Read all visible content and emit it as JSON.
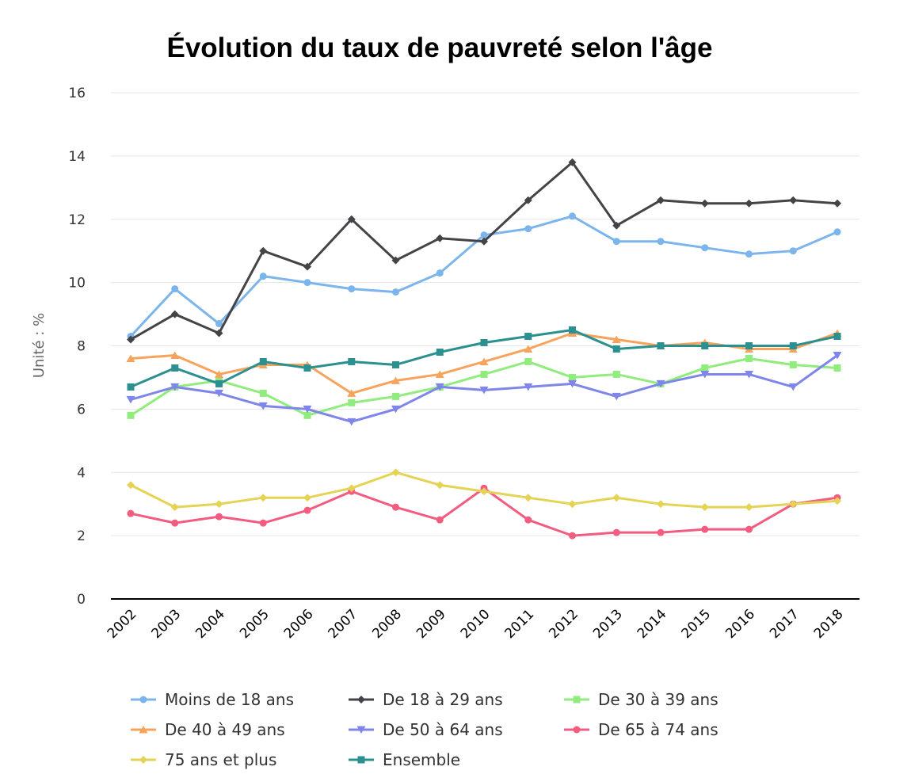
{
  "chart_data": {
    "type": "line",
    "title": "Évolution du taux de pauvreté selon l'âge",
    "xlabel": "",
    "ylabel": "Unité : %",
    "ylim": [
      0,
      16
    ],
    "yticks": [
      0,
      2,
      4,
      6,
      8,
      10,
      12,
      14,
      16
    ],
    "grid": true,
    "legend_placement": "bottom",
    "x": [
      "2002",
      "2003",
      "2004",
      "2005",
      "2006",
      "2007",
      "2008",
      "2009",
      "2010",
      "2011",
      "2012",
      "2013",
      "2014",
      "2015",
      "2016",
      "2017",
      "2018"
    ],
    "series": [
      {
        "name": "Moins de 18 ans",
        "color": "#7cb5ec",
        "marker": "circle",
        "values": [
          8.3,
          9.8,
          8.7,
          10.2,
          10.0,
          9.8,
          9.7,
          10.3,
          11.5,
          11.7,
          12.1,
          11.3,
          11.3,
          11.1,
          10.9,
          11.0,
          11.6
        ]
      },
      {
        "name": "De 18 à 29 ans",
        "color": "#434348",
        "marker": "diamond",
        "values": [
          8.2,
          9.0,
          8.4,
          11.0,
          10.5,
          12.0,
          10.7,
          11.4,
          11.3,
          12.6,
          13.8,
          11.8,
          12.6,
          12.5,
          12.5,
          12.6,
          12.5
        ]
      },
      {
        "name": "De 30 à 39 ans",
        "color": "#90ed7d",
        "marker": "square",
        "values": [
          5.8,
          6.7,
          6.9,
          6.5,
          5.8,
          6.2,
          6.4,
          6.7,
          7.1,
          7.5,
          7.0,
          7.1,
          6.8,
          7.3,
          7.6,
          7.4,
          7.3
        ]
      },
      {
        "name": "De 40 à 49 ans",
        "color": "#f7a35c",
        "marker": "triangle",
        "values": [
          7.6,
          7.7,
          7.1,
          7.4,
          7.4,
          6.5,
          6.9,
          7.1,
          7.5,
          7.9,
          8.4,
          8.2,
          8.0,
          8.1,
          7.9,
          7.9,
          8.4
        ]
      },
      {
        "name": "De 50 à 64 ans",
        "color": "#8085e9",
        "marker": "triangle-down",
        "values": [
          6.3,
          6.7,
          6.5,
          6.1,
          6.0,
          5.6,
          6.0,
          6.7,
          6.6,
          6.7,
          6.8,
          6.4,
          6.8,
          7.1,
          7.1,
          6.7,
          7.7
        ]
      },
      {
        "name": "De 65 à 74 ans",
        "color": "#f15c80",
        "marker": "circle",
        "values": [
          2.7,
          2.4,
          2.6,
          2.4,
          2.8,
          3.4,
          2.9,
          2.5,
          3.5,
          2.5,
          2.0,
          2.1,
          2.1,
          2.2,
          2.2,
          3.0,
          3.2
        ]
      },
      {
        "name": "75 ans et plus",
        "color": "#e4d354",
        "marker": "diamond",
        "values": [
          3.6,
          2.9,
          3.0,
          3.2,
          3.2,
          3.5,
          4.0,
          3.6,
          3.4,
          3.2,
          3.0,
          3.2,
          3.0,
          2.9,
          2.9,
          3.0,
          3.1
        ]
      },
      {
        "name": "Ensemble",
        "color": "#2b908f",
        "marker": "square",
        "values": [
          6.7,
          7.3,
          6.8,
          7.5,
          7.3,
          7.5,
          7.4,
          7.8,
          8.1,
          8.3,
          8.5,
          7.9,
          8.0,
          8.0,
          8.0,
          8.0,
          8.3
        ]
      }
    ]
  }
}
